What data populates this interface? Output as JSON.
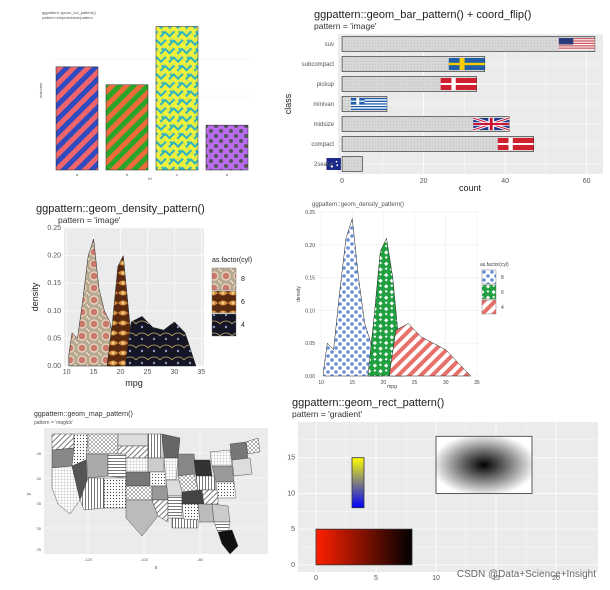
{
  "watermark": "CSDN @Data+Science+Insight",
  "colors": {
    "panel_bg": "#ebebeb",
    "grid": "#ffffff",
    "bar_grey": "#d9d9d9"
  },
  "chart_data": [
    {
      "id": "p1",
      "type": "bar",
      "title": "ggpattern::geom_col_pattern()",
      "subtitle": "pattern=stripe/weave/pattern",
      "xlabel": "trt",
      "ylabel": "outcome",
      "categories": [
        "a",
        "b",
        "c",
        "d"
      ],
      "values": [
        2.3,
        1.9,
        3.2,
        1.0
      ],
      "ylim": [
        0,
        3.3
      ],
      "fills": [
        "#f0656b",
        "#ef6b3a",
        "#f2f23a",
        "#b96cf0"
      ],
      "patterns": [
        "stripe",
        "stripe",
        "weave",
        "circle"
      ],
      "pattern_fill": [
        "#2f4bbf",
        "#2aa52a",
        "#2fb3c0",
        "#555555"
      ]
    },
    {
      "id": "p2",
      "type": "bar",
      "title": "ggpattern::geom_bar_pattern() + coord_flip()",
      "subtitle": "pattern = 'image'",
      "xlabel": "count",
      "ylabel": "class",
      "categories": [
        "suv",
        "subcompact",
        "pickup",
        "minivan",
        "midsize",
        "compact",
        "2seater"
      ],
      "values": [
        62,
        35,
        33,
        11,
        41,
        47,
        5
      ],
      "xticks": [
        0,
        20,
        40,
        60
      ],
      "xlim": [
        -1,
        64
      ],
      "images": [
        "us-flag",
        "sweden-flag",
        "denmark-flag",
        "greece-flag",
        "uk-flag",
        "denmark-flag",
        "australia-flag"
      ]
    },
    {
      "id": "p3",
      "type": "area",
      "title": "ggpattern::geom_density_pattern()",
      "subtitle": "pattern = 'image'",
      "xlabel": "mpg",
      "ylabel": "density",
      "xticks": [
        10,
        15,
        20,
        25,
        30,
        35
      ],
      "yticks": [
        "0.00",
        "0.05",
        "0.10",
        "0.15",
        "0.20",
        "0.25"
      ],
      "xlim": [
        9.5,
        35.5
      ],
      "ylim": [
        0,
        0.25
      ],
      "legend_title": "as.factor(cyl)",
      "legend_position": "right",
      "series": [
        {
          "name": "4",
          "x": [
            21,
            22,
            24,
            26,
            28,
            30,
            32,
            34
          ],
          "y": [
            0.01,
            0.08,
            0.09,
            0.07,
            0.065,
            0.08,
            0.06,
            0.0
          ],
          "fill": "#1a1a2a"
        },
        {
          "name": "6",
          "x": [
            17.5,
            18.5,
            19.5,
            20.5,
            21.5,
            22.5
          ],
          "y": [
            0.0,
            0.08,
            0.18,
            0.2,
            0.1,
            0.0
          ],
          "fill": "#7a3a1a"
        },
        {
          "name": "8",
          "x": [
            10.4,
            11,
            12,
            13,
            14,
            15,
            16,
            17,
            18,
            19,
            20
          ],
          "y": [
            0.02,
            0.06,
            0.05,
            0.12,
            0.2,
            0.23,
            0.14,
            0.1,
            0.08,
            0.03,
            0.0
          ],
          "fill": "#b9a890"
        }
      ]
    },
    {
      "id": "p4",
      "type": "area",
      "title": "ggpattern::geom_density_pattern()",
      "xlabel": "mpg",
      "ylabel": "density",
      "xticks": [
        10,
        15,
        20,
        25,
        30,
        35
      ],
      "yticks": [
        "0.00",
        "0.05",
        "0.10",
        "0.15",
        "0.20",
        "0.25"
      ],
      "xlim": [
        9.5,
        35.5
      ],
      "ylim": [
        0,
        0.25
      ],
      "legend_title": "as.factor(cyl)",
      "legend_position": "right",
      "series": [
        {
          "name": "4",
          "x": [
            21,
            22,
            24,
            26,
            28,
            30,
            32,
            34
          ],
          "y": [
            0.005,
            0.07,
            0.08,
            0.06,
            0.05,
            0.04,
            0.02,
            0.0
          ],
          "fill": "#e8706a"
        },
        {
          "name": "6",
          "x": [
            17.5,
            18.5,
            19.5,
            20.5,
            21.5,
            22.5,
            23.5
          ],
          "y": [
            0.0,
            0.09,
            0.19,
            0.21,
            0.15,
            0.05,
            0.0
          ],
          "fill": "#20a040"
        },
        {
          "name": "8",
          "x": [
            10.4,
            11,
            12,
            13,
            14,
            15,
            16,
            17,
            18,
            19,
            20
          ],
          "y": [
            0.01,
            0.05,
            0.04,
            0.13,
            0.21,
            0.24,
            0.15,
            0.08,
            0.05,
            0.02,
            0.0
          ],
          "fill": "#6a8fd8"
        }
      ]
    },
    {
      "id": "p5",
      "type": "other",
      "title": "ggpattern::geom_map_pattern()",
      "subtitle": "pattern = 'magick'",
      "xlabel": "x",
      "ylabel": "y",
      "xticks": [
        "-120",
        "-100",
        "-80"
      ],
      "yticks": [
        "25",
        "30",
        "35",
        "40",
        "45"
      ]
    },
    {
      "id": "p6",
      "type": "other",
      "title": "ggpattern::geom_rect_pattern()",
      "subtitle": "pattern = 'gradient'",
      "xticks": [
        0,
        5,
        10,
        15,
        20
      ],
      "yticks": [
        0,
        5,
        10,
        15
      ],
      "xlim": [
        -1.5,
        23.5
      ],
      "ylim": [
        -1,
        20
      ],
      "rects": [
        {
          "xmin": 0,
          "xmax": 8,
          "ymin": 0,
          "ymax": 5,
          "gradient": "horizontal",
          "from": "#ff2000",
          "to": "#000000"
        },
        {
          "xmin": 3,
          "xmax": 4,
          "ymin": 8,
          "ymax": 15,
          "gradient": "vertical",
          "from": "#ffff00",
          "to": "#0000ff"
        },
        {
          "xmin": 10,
          "xmax": 18,
          "ymin": 10,
          "ymax": 18,
          "gradient": "radial",
          "from": "#000000",
          "to": "#ffffff"
        }
      ]
    }
  ]
}
